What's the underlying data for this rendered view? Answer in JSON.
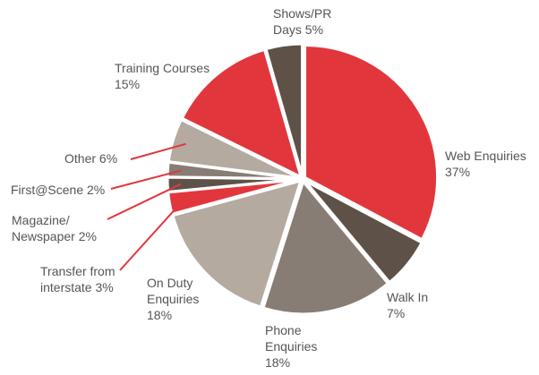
{
  "chart_data": {
    "type": "pie",
    "categories": [
      "Web Enquiries",
      "Walk In",
      "Phone Enquiries",
      "On Duty Enquiries",
      "Transfer from interstate",
      "Magazine/ Newspaper",
      "First@Scene",
      "Other",
      "Training Courses",
      "Shows/PR Days"
    ],
    "values": [
      37,
      7,
      18,
      18,
      3,
      2,
      2,
      6,
      15,
      5
    ],
    "value_labels": [
      "37%",
      "7%",
      "18%",
      "18%",
      "3%",
      "2%",
      "2%",
      "6%",
      "15%",
      "5%"
    ],
    "colors": [
      "#e2363d",
      "#5e5248",
      "#877d74",
      "#b4aaa0",
      "#e2363d",
      "#5e5248",
      "#877d74",
      "#b4aaa0",
      "#e2363d",
      "#5e5248"
    ],
    "leader_color": "#e2363d"
  }
}
